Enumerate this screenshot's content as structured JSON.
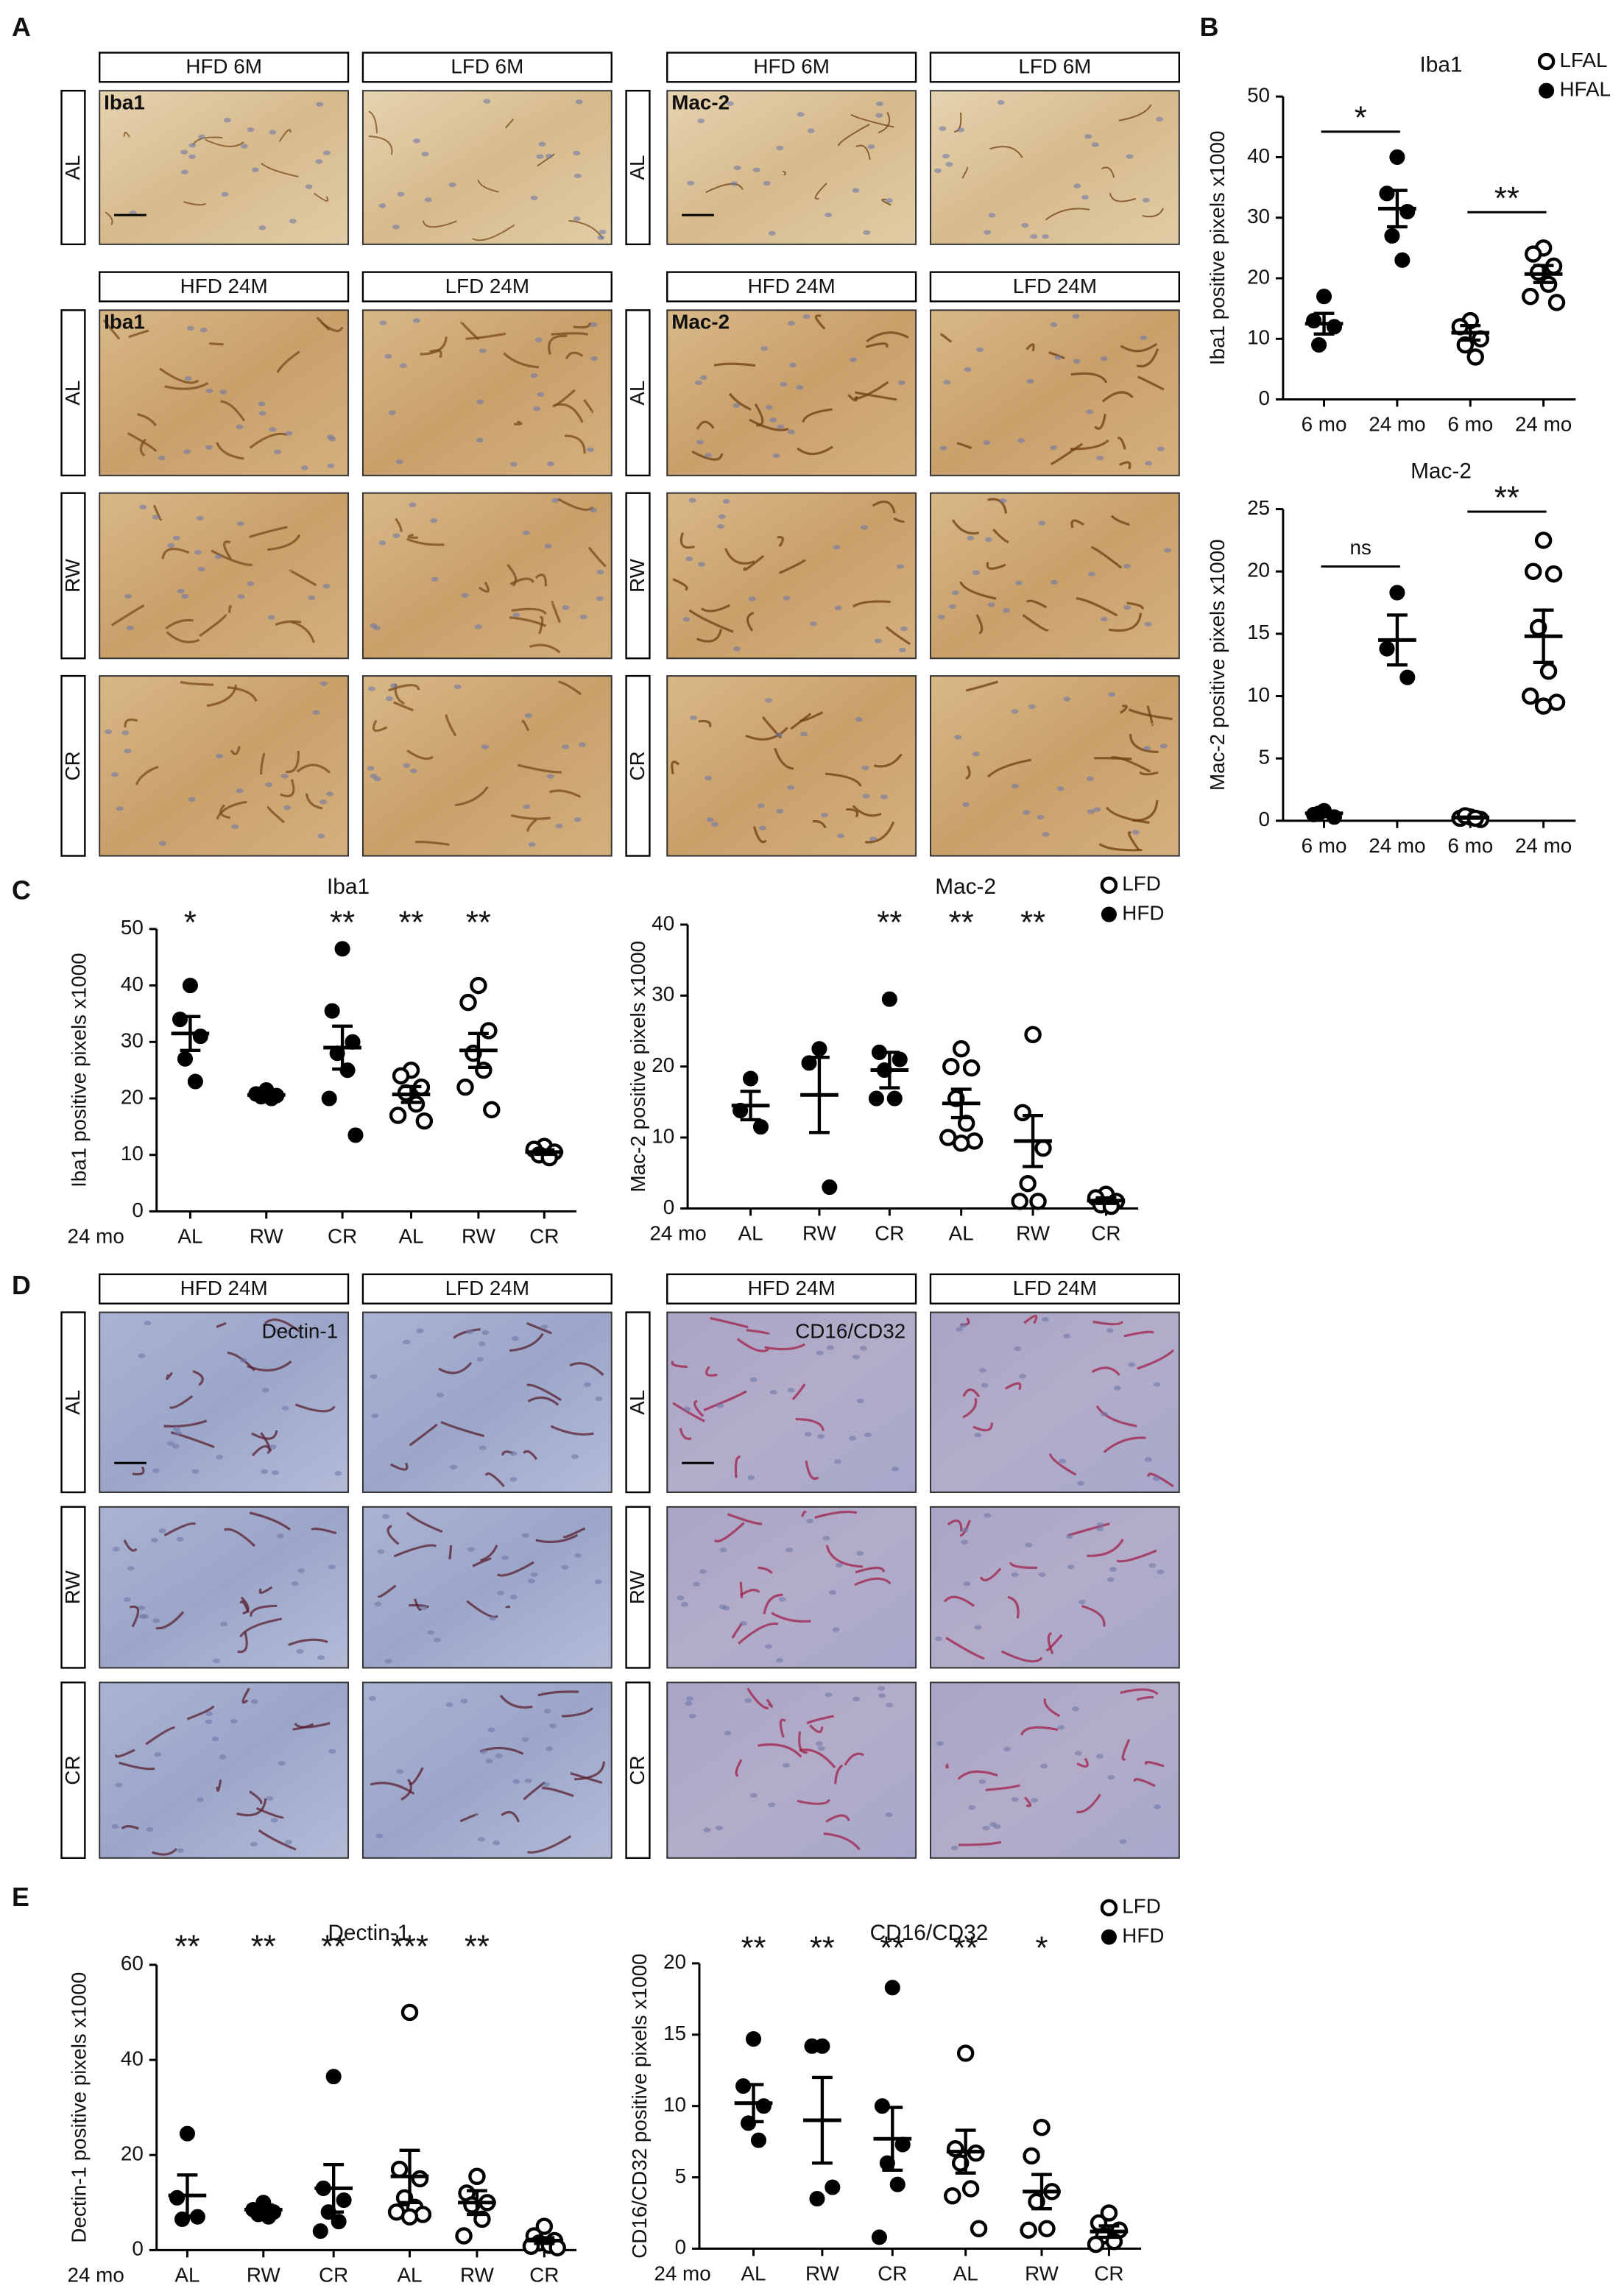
{
  "figure": {
    "panel_labels": [
      "A",
      "B",
      "C",
      "D",
      "E"
    ],
    "micrograph_blocks": [
      {
        "stain": "Iba1",
        "sections": [
          {
            "headers": [
              "HFD 6M",
              "LFD 6M"
            ],
            "rows": [
              "AL"
            ]
          },
          {
            "headers": [
              "HFD 24M",
              "LFD 24M"
            ],
            "rows": [
              "AL",
              "RW",
              "CR"
            ]
          }
        ]
      },
      {
        "stain": "Mac-2",
        "sections": [
          {
            "headers": [
              "HFD 6M",
              "LFD 6M"
            ],
            "rows": [
              "AL"
            ]
          },
          {
            "headers": [
              "HFD 24M",
              "LFD 24M"
            ],
            "rows": [
              "AL",
              "RW",
              "CR"
            ]
          }
        ]
      },
      {
        "stain": "Dectin-1",
        "sections": [
          {
            "headers": [
              "HFD 24M",
              "LFD 24M"
            ],
            "rows": [
              "AL",
              "RW",
              "CR"
            ]
          }
        ]
      },
      {
        "stain": "CD16/CD32",
        "sections": [
          {
            "headers": [
              "HFD 24M",
              "LFD 24M"
            ],
            "rows": [
              "AL",
              "RW",
              "CR"
            ]
          }
        ]
      }
    ]
  },
  "chart_data": [
    {
      "type": "scatter",
      "title": "Iba1",
      "y_label": "Iba1 positive pixels x1000",
      "categories": [
        "6 mo",
        "24 mo",
        "6 mo",
        "24 mo"
      ],
      "markers": [
        "filled",
        "filled",
        "open",
        "open"
      ],
      "legend": [
        {
          "name": "LFAL",
          "marker": "open"
        },
        {
          "name": "HFAL",
          "marker": "filled"
        }
      ],
      "points": [
        [
          17,
          13,
          12,
          9
        ],
        [
          40,
          34,
          31,
          27,
          23
        ],
        [
          13,
          12,
          10,
          9,
          7
        ],
        [
          25,
          24,
          22,
          21,
          19,
          17,
          16
        ]
      ],
      "means": [
        12.5,
        31.5,
        11,
        20.7
      ],
      "sems": [
        1.7,
        3,
        1.2,
        1.4
      ],
      "brackets": [
        {
          "label": "*",
          "y": 44.2,
          "categories": [
            0,
            1
          ]
        },
        {
          "label": "**",
          "y": 30.9,
          "categories": [
            2,
            3
          ]
        }
      ],
      "ylim": [
        0,
        50
      ],
      "yticks": [
        0,
        10,
        20,
        30,
        40,
        50
      ]
    },
    {
      "type": "scatter",
      "title": "Mac-2",
      "y_label": "Mac-2 positive pixels x1000",
      "categories": [
        "6 mo",
        "24 mo",
        "6 mo",
        "24 mo"
      ],
      "markers": [
        "filled",
        "filled",
        "open",
        "open"
      ],
      "points": [
        [
          0.8,
          0.5,
          0.3,
          0.6
        ],
        [
          18.3,
          13.8,
          11.5
        ],
        [
          0.3,
          0.2,
          0.1,
          0.4,
          0.2
        ],
        [
          22.5,
          20,
          19.8,
          15.5,
          12,
          10,
          9.5,
          9.2
        ]
      ],
      "means": [
        0.6,
        14.5,
        0.25,
        14.8
      ],
      "sems": [
        0.1,
        2,
        0.05,
        2.1
      ],
      "brackets": [
        {
          "label": "ns",
          "y": 20.4,
          "categories": [
            0,
            1
          ]
        },
        {
          "label": "**",
          "y": 24.8,
          "categories": [
            2,
            3
          ]
        }
      ],
      "ylim": [
        0,
        25
      ],
      "yticks": [
        0,
        5,
        10,
        15,
        20,
        25
      ]
    },
    {
      "type": "scatter",
      "title": "Iba1",
      "y_label": "Iba1 positive pixels x1000",
      "x_prefix": "24 mo",
      "categories": [
        "AL",
        "RW",
        "CR",
        "AL",
        "RW",
        "CR"
      ],
      "markers": [
        "filled",
        "filled",
        "filled",
        "open",
        "open",
        "open"
      ],
      "points": [
        [
          40,
          34,
          31,
          27,
          23
        ],
        [
          21.5,
          20.8,
          20.5,
          20.3,
          20
        ],
        [
          46.5,
          35.5,
          30,
          28,
          25,
          20,
          13.5
        ],
        [
          25,
          24,
          22,
          21,
          19,
          17,
          16
        ],
        [
          40,
          37,
          32,
          28,
          25,
          22,
          18
        ],
        [
          11.5,
          11,
          10.5,
          10,
          9.5
        ]
      ],
      "means": [
        31.5,
        20.6,
        29,
        20.7,
        28.5,
        10.5
      ],
      "sems": [
        3,
        0.3,
        3.8,
        1.4,
        3,
        0.4
      ],
      "significance": [
        "*",
        null,
        "**",
        "**",
        "**",
        null
      ],
      "ylim": [
        0,
        50
      ],
      "yticks": [
        0,
        10,
        20,
        30,
        40,
        50
      ]
    },
    {
      "type": "scatter",
      "title": "Mac-2",
      "y_label": "Mac-2 positive pixels x1000",
      "x_prefix": "24 mo",
      "categories": [
        "AL",
        "RW",
        "CR",
        "AL",
        "RW",
        "CR"
      ],
      "markers": [
        "filled",
        "filled",
        "filled",
        "open",
        "open",
        "open"
      ],
      "legend": [
        {
          "name": "LFD",
          "marker": "open"
        },
        {
          "name": "HFD",
          "marker": "filled"
        }
      ],
      "points": [
        [
          18.3,
          13.8,
          11.5
        ],
        [
          22.5,
          20.5,
          3
        ],
        [
          29.5,
          22,
          21,
          19.5,
          15.5,
          15.5
        ],
        [
          22.5,
          20,
          19.8,
          15.5,
          12,
          10,
          9.5,
          9.2
        ],
        [
          24.5,
          13.5,
          8.5,
          3.5,
          1,
          1
        ],
        [
          2,
          1.5,
          1,
          0.5,
          0.3
        ]
      ],
      "means": [
        14.5,
        16,
        19.5,
        14.8,
        9.5,
        1.1
      ],
      "sems": [
        2,
        5.3,
        2.5,
        2,
        3.6,
        0.4
      ],
      "significance": [
        null,
        null,
        "**",
        "**",
        "**",
        null
      ],
      "ylim": [
        0,
        40
      ],
      "yticks": [
        0,
        10,
        20,
        30,
        40
      ]
    },
    {
      "type": "scatter",
      "title": "Dectin-1",
      "y_label": "Dectin-1 positive pixels x1000",
      "x_prefix": "24 mo",
      "categories": [
        "AL",
        "RW",
        "CR",
        "AL",
        "RW",
        "CR"
      ],
      "markers": [
        "filled",
        "filled",
        "filled",
        "open",
        "open",
        "open"
      ],
      "points": [
        [
          24.5,
          11,
          7,
          6.5
        ],
        [
          10,
          8.5,
          8,
          7.5,
          7
        ],
        [
          36.5,
          13,
          10.5,
          8,
          6,
          4
        ],
        [
          50,
          17,
          15,
          11,
          9,
          8,
          7.5,
          7
        ],
        [
          15.5,
          12,
          10,
          9.5,
          6.5,
          3
        ],
        [
          5,
          3,
          2,
          1.5,
          1,
          0.8,
          0.5
        ]
      ],
      "means": [
        11.5,
        8.5,
        13,
        15.5,
        10,
        2
      ],
      "sems": [
        4.3,
        1,
        5,
        5.5,
        2.5,
        0.6
      ],
      "significance": [
        "**",
        "**",
        "**",
        "***",
        "**",
        null
      ],
      "ylim": [
        0,
        60
      ],
      "yticks": [
        0,
        20,
        40,
        60
      ]
    },
    {
      "type": "scatter",
      "title": "CD16/CD32",
      "y_label": "CD16/CD32 positive pixels x1000",
      "x_prefix": "24 mo",
      "categories": [
        "AL",
        "RW",
        "CR",
        "AL",
        "RW",
        "CR"
      ],
      "markers": [
        "filled",
        "filled",
        "filled",
        "open",
        "open",
        "open"
      ],
      "legend": [
        {
          "name": "LFD",
          "marker": "open"
        },
        {
          "name": "HFD",
          "marker": "filled"
        }
      ],
      "points": [
        [
          14.7,
          11.4,
          10,
          8.8,
          7.6
        ],
        [
          14.2,
          14.2,
          4.3,
          3.5
        ],
        [
          18.3,
          10,
          7.3,
          6,
          4.5,
          0.8
        ],
        [
          13.7,
          7,
          6.7,
          6,
          4.2,
          3.7,
          1.4
        ],
        [
          8.5,
          6.5,
          4,
          3.3,
          1.4,
          1.3
        ],
        [
          2.5,
          1.8,
          1.3,
          0.9,
          0.5,
          0.3
        ]
      ],
      "means": [
        10.2,
        9,
        7.7,
        6.8,
        4,
        1.2
      ],
      "sems": [
        1.3,
        3,
        2.2,
        1.5,
        1.2,
        0.4
      ],
      "significance": [
        "**",
        "**",
        "**",
        "**",
        "*",
        null
      ],
      "ylim": [
        0,
        20
      ],
      "yticks": [
        0,
        5,
        10,
        15,
        20
      ]
    }
  ]
}
